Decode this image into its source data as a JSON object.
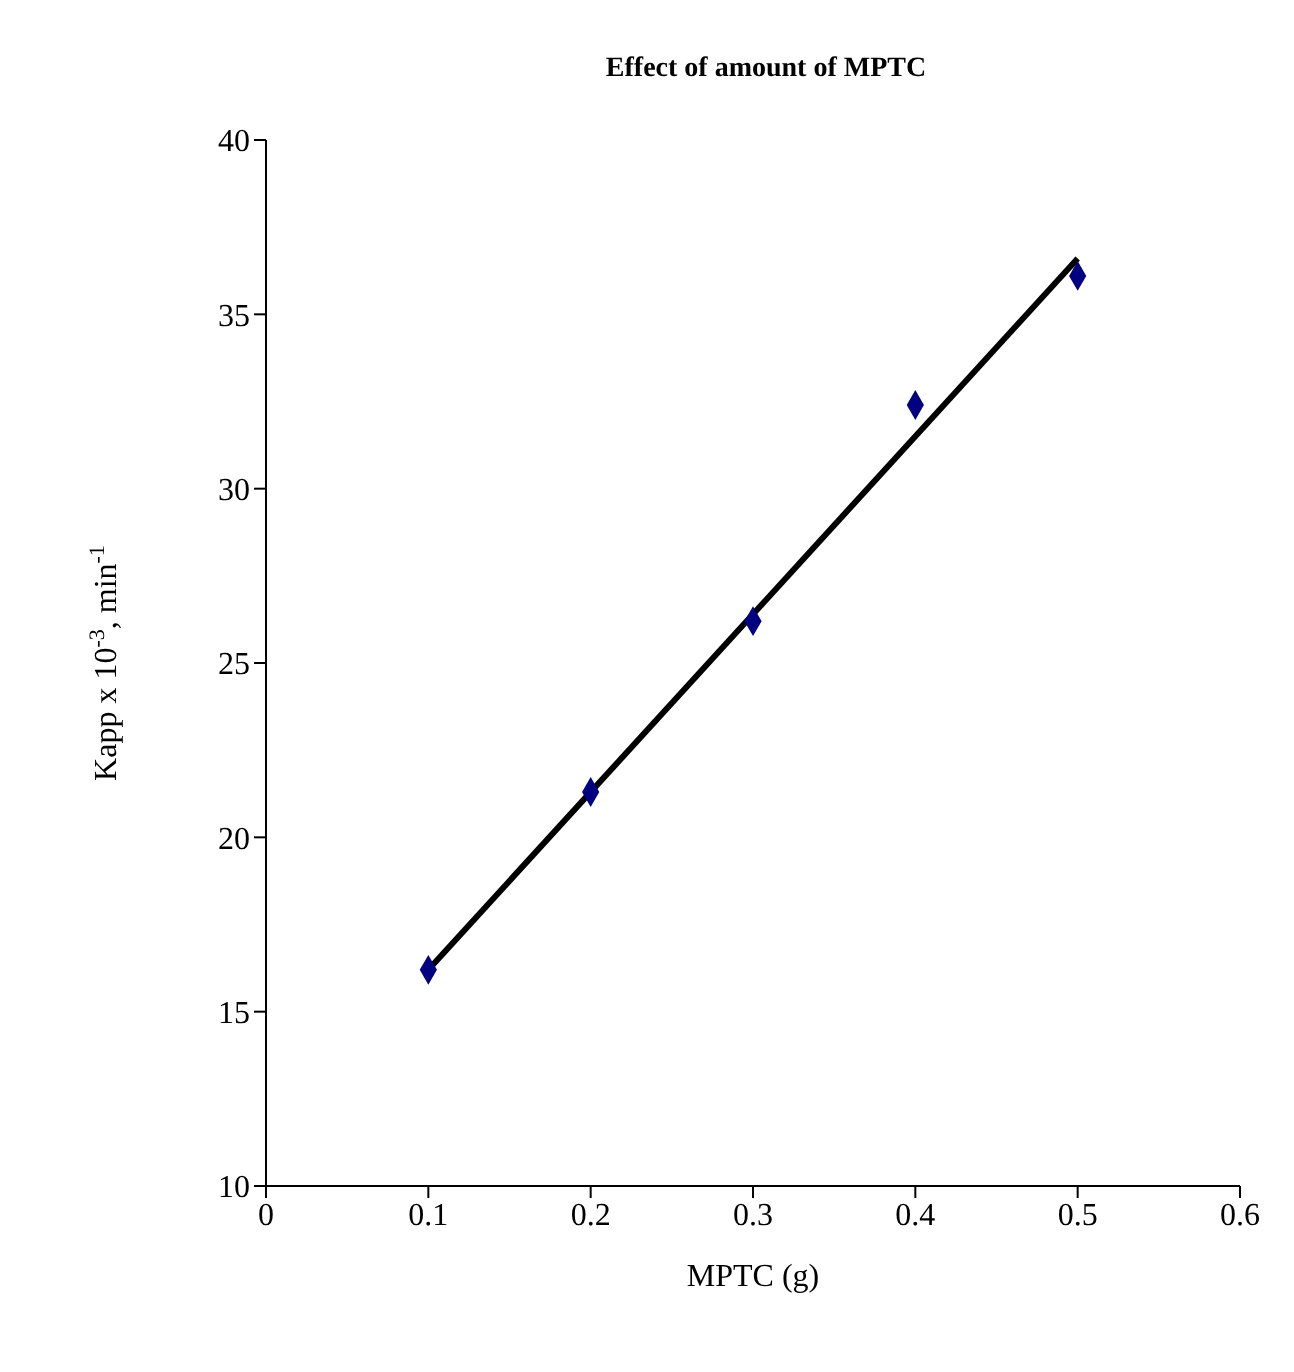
{
  "chart_data": {
    "type": "scatter",
    "title": "Effect of amount of MPTC",
    "xlabel": "MPTC (g)",
    "ylabel": "Kapp x 10$^{-3}$, min$^{-1}$",
    "series": [
      {
        "color": "#000080",
        "marker": "diamond",
        "x": [
          0.1,
          0.2,
          0.3,
          0.4,
          0.5
        ],
        "values": [
          16.2,
          21.3,
          26.2,
          32.4,
          36.1
        ]
      },
      {
        "type": "line",
        "color": "#000000",
        "marker": "none",
        "line_style": "solid",
        "x": [
          0.1,
          0.5
        ],
        "values": [
          16.2,
          36.6
        ]
      }
    ],
    "xlim": [
      0,
      0.6
    ],
    "xticks": [
      0,
      0.1,
      0.2,
      0.3,
      0.4,
      0.5,
      0.6
    ],
    "ylim": [
      10,
      40
    ],
    "yticks": [
      10,
      15,
      20,
      25,
      30,
      35,
      40
    ],
    "grid": false
  }
}
